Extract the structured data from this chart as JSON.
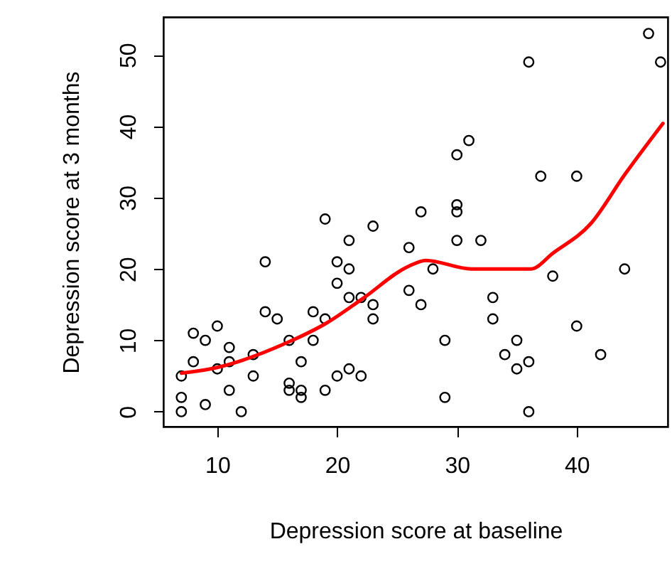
{
  "chart_data": {
    "type": "scatter",
    "xlabel": "Depression score at baseline",
    "ylabel": "Depression score at 3 months",
    "xlim": [
      5.5,
      47.6
    ],
    "ylim": [
      -2.1,
      55.3
    ],
    "xticks": [
      10,
      20,
      30,
      40
    ],
    "yticks": [
      0,
      10,
      20,
      30,
      40,
      50
    ],
    "grid": false,
    "series": [
      {
        "marker": "circle",
        "color": "#000000",
        "x": [
          7,
          7,
          7,
          8,
          8,
          9,
          9,
          10,
          10,
          11,
          11,
          11,
          12,
          13,
          13,
          14,
          14,
          15,
          16,
          16,
          16,
          17,
          17,
          17,
          18,
          18,
          19,
          19,
          19,
          20,
          20,
          20,
          21,
          21,
          21,
          21,
          22,
          22,
          23,
          23,
          23,
          26,
          26,
          46,
          47,
          36,
          30,
          31,
          37,
          40,
          27,
          30,
          30,
          30,
          32,
          28,
          27,
          38,
          44,
          33,
          33,
          29,
          35,
          40,
          34,
          42,
          35,
          36,
          29,
          36
        ],
        "values": [
          0,
          2,
          5,
          7,
          11,
          10,
          1,
          12,
          6,
          9,
          7,
          3,
          0,
          8,
          5,
          21,
          14,
          13,
          10,
          4,
          3,
          7,
          3,
          2,
          14,
          10,
          27,
          13,
          3,
          21,
          18,
          5,
          24,
          20,
          16,
          6,
          16,
          5,
          26,
          15,
          13,
          23,
          17,
          53,
          49,
          49,
          36,
          38,
          33,
          33,
          28,
          29,
          28,
          24,
          24,
          20,
          15,
          19,
          20,
          16,
          13,
          10,
          10,
          12,
          8,
          8,
          6,
          7,
          2,
          0
        ]
      },
      {
        "type": "line",
        "color": "#ff0000",
        "x": [
          7,
          10,
          16,
          19.1,
          22.1,
          26,
          27.4,
          31.2,
          36.2,
          38,
          41.2,
          44,
          47.2
        ],
        "values": [
          5.4,
          6.2,
          9.8,
          12.4,
          15.8,
          20.4,
          21.2,
          20,
          20,
          22.2,
          26.4,
          33.2,
          40.4
        ]
      }
    ]
  }
}
